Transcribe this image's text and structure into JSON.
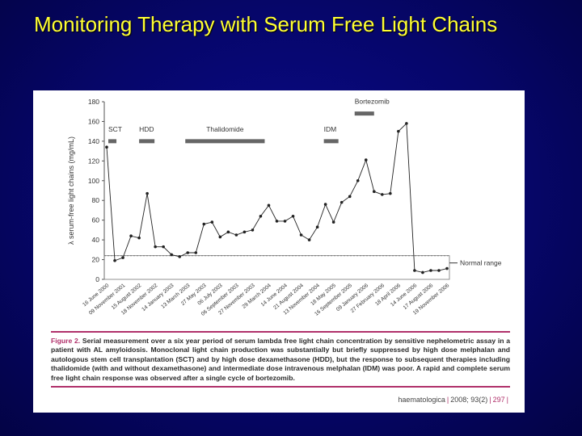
{
  "slide": {
    "title": "Monitoring Therapy with Serum Free Light Chains"
  },
  "chart_data": {
    "type": "line",
    "ylabel": "λ serum-free light chains (mg/mL)",
    "xlabel": "",
    "ylim": [
      0,
      180
    ],
    "yticks": [
      0,
      20,
      40,
      60,
      80,
      100,
      120,
      140,
      160,
      180
    ],
    "grid": false,
    "x_date_labels": [
      "16 June 2000",
      "09 November 2001",
      "15 August 2002",
      "18 November 2002",
      "14 January 2003",
      "13 March 2003",
      "27 May 2003",
      "06 July 2003",
      "06 September 2003",
      "27 November 2003",
      "29 March 2004",
      "14 June 2004",
      "21 August 2004",
      "13 November 2004",
      "18 May 2005",
      "16 September 2005",
      "09 January 2006",
      "27 February 2006",
      "18 April 2006",
      "14 June 2006",
      "17 August 2006",
      "19 November 2006"
    ],
    "series": [
      {
        "values": [
          134,
          19,
          22,
          44,
          42,
          87,
          33,
          33,
          25,
          23,
          27,
          27,
          56,
          58,
          43,
          48,
          45,
          48,
          50,
          64,
          75,
          59,
          59,
          64,
          45,
          40,
          53,
          76,
          58,
          78,
          84,
          100,
          121,
          89,
          86,
          87,
          150,
          158,
          9,
          7,
          9,
          9,
          11
        ],
        "color": "#222222"
      }
    ],
    "reference_line": {
      "value": 24,
      "label": "Normal range",
      "style": "dashed"
    },
    "therapy_bars": [
      {
        "label": "SCT",
        "start_index": 0.2,
        "end_index": 1.2
      },
      {
        "label": "HDD",
        "start_index": 4.0,
        "end_index": 5.9
      },
      {
        "label": "Thalidomide",
        "start_index": 9.7,
        "end_index": 19.5
      },
      {
        "label": "IDM",
        "start_index": 26.8,
        "end_index": 28.6
      },
      {
        "label": "Bortezomib",
        "start_index": 30.6,
        "end_index": 33.0,
        "raised": true
      }
    ]
  },
  "caption": {
    "fig_label": "Figure 2.",
    "text": "Serial measurement over a six year period of serum lambda free light chain concentration by sensitive nephelometric assay in a patient with AL amyloidosis. Monoclonal light chain production was substantially but briefly suppressed by high dose melphalan and autologous stem cell transplantation (SCT) and by high dose dexamethasone (HDD), but the response to subsequent therapies including thalidomide (with and without dexamethasone) and intermediate dose intravenous melphalan (IDM) was poor. A rapid and complete serum free light chain response was observed after a single cycle of bortezomib."
  },
  "citation": {
    "journal": "haematologica",
    "year_volume": "2008; 93(2)",
    "page": "297"
  }
}
